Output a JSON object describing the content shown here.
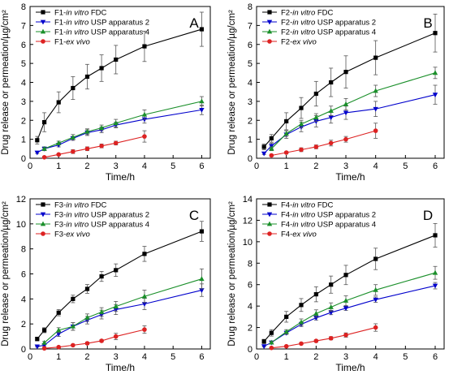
{
  "chart_data": [
    {
      "type": "line",
      "panel_label": "A",
      "xlabel": "Time/h",
      "ylabel": "Drug release or permeation/µg/cm²",
      "ylabel_sup": "2",
      "xlim": [
        0,
        6.3
      ],
      "ylim": [
        0,
        8
      ],
      "xticks": [
        0,
        1,
        2,
        3,
        4,
        5,
        6
      ],
      "yticks": [
        0,
        1,
        2,
        3,
        4,
        5,
        6,
        7,
        8
      ],
      "series": [
        {
          "name_prefix": "F1-",
          "name_italic": "in vitro",
          "name_suffix": " FDC",
          "color": "#000000",
          "marker": "square",
          "x": [
            0.25,
            0.5,
            1,
            1.5,
            2,
            2.5,
            3,
            4,
            6
          ],
          "y": [
            0.95,
            1.9,
            2.95,
            3.7,
            4.3,
            4.75,
            5.2,
            5.9,
            6.8
          ],
          "err": [
            0.2,
            0.5,
            0.55,
            0.6,
            0.65,
            0.7,
            0.75,
            0.8,
            0.9
          ]
        },
        {
          "name_prefix": "F1-",
          "name_italic": "in vitro",
          "name_suffix": " USP apparatus 2",
          "color": "#0000cc",
          "marker": "tri-down",
          "x": [
            0.25,
            0.5,
            1,
            1.5,
            2,
            2.5,
            3,
            4,
            6
          ],
          "y": [
            0.3,
            0.5,
            0.7,
            1.05,
            1.35,
            1.5,
            1.75,
            2.05,
            2.55
          ],
          "err": [
            0.05,
            0.1,
            0.1,
            0.1,
            0.15,
            0.15,
            0.15,
            0.2,
            0.25
          ]
        },
        {
          "name_prefix": "F1-",
          "name_italic": "in vitro",
          "name_suffix": " USP apparatus 4",
          "color": "#1a8f2a",
          "marker": "tri-up",
          "x": [
            0.5,
            1,
            1.5,
            2,
            2.5,
            3,
            4,
            6
          ],
          "y": [
            0.5,
            0.8,
            1.1,
            1.4,
            1.6,
            1.85,
            2.3,
            3.0
          ],
          "err": [
            0.05,
            0.1,
            0.15,
            0.15,
            0.15,
            0.2,
            0.25,
            0.25
          ]
        },
        {
          "name_prefix": "F1-",
          "name_italic": "ex vivo",
          "name_suffix": "",
          "color": "#dd2222",
          "marker": "circle",
          "x": [
            0.5,
            1,
            1.5,
            2,
            2.5,
            3,
            4
          ],
          "y": [
            0.05,
            0.2,
            0.35,
            0.5,
            0.65,
            0.8,
            1.15
          ],
          "err": [
            0.05,
            0.05,
            0.1,
            0.1,
            0.1,
            0.1,
            0.3
          ]
        }
      ]
    },
    {
      "type": "line",
      "panel_label": "B",
      "xlabel": "Time/h",
      "ylabel": "Drug release or permeation/µg/cm²",
      "ylabel_sup": "2",
      "xlim": [
        0,
        6.3
      ],
      "ylim": [
        0,
        8
      ],
      "xticks": [
        0,
        1,
        2,
        3,
        4,
        5,
        6
      ],
      "yticks": [
        0,
        1,
        2,
        3,
        4,
        5,
        6,
        7,
        8
      ],
      "series": [
        {
          "name_prefix": "F2-",
          "name_italic": "in vitro",
          "name_suffix": " FDC",
          "color": "#000000",
          "marker": "square",
          "x": [
            0.25,
            0.5,
            1,
            1.5,
            2,
            2.5,
            3,
            4,
            6
          ],
          "y": [
            0.6,
            1.05,
            1.95,
            2.65,
            3.4,
            4.0,
            4.55,
            5.3,
            6.6
          ],
          "err": [
            0.15,
            0.2,
            0.45,
            0.55,
            0.65,
            0.75,
            0.85,
            0.9,
            1.0
          ]
        },
        {
          "name_prefix": "F2-",
          "name_italic": "in vitro",
          "name_suffix": " USP apparatus 2",
          "color": "#0000cc",
          "marker": "tri-down",
          "x": [
            0.25,
            0.5,
            1,
            1.5,
            2,
            2.5,
            3,
            4,
            6
          ],
          "y": [
            0.25,
            0.65,
            1.25,
            1.65,
            1.95,
            2.15,
            2.4,
            2.6,
            3.35
          ],
          "err": [
            0.05,
            0.15,
            0.2,
            0.25,
            0.3,
            0.3,
            0.35,
            0.4,
            0.5
          ]
        },
        {
          "name_prefix": "F2-",
          "name_italic": "in vitro",
          "name_suffix": " USP apparatus 4",
          "color": "#1a8f2a",
          "marker": "tri-up",
          "x": [
            0.5,
            1,
            1.5,
            2,
            2.5,
            3,
            4,
            6
          ],
          "y": [
            0.5,
            1.3,
            1.8,
            2.15,
            2.5,
            2.85,
            3.55,
            4.5
          ],
          "err": [
            0.1,
            0.15,
            0.2,
            0.2,
            0.25,
            0.3,
            0.3,
            0.3
          ]
        },
        {
          "name_prefix": "F2-",
          "name_italic": "ex vivo",
          "name_suffix": "",
          "color": "#dd2222",
          "marker": "circle",
          "x": [
            0.5,
            1,
            1.5,
            2,
            2.5,
            3,
            4
          ],
          "y": [
            0.15,
            0.3,
            0.45,
            0.6,
            0.8,
            1.0,
            1.45
          ],
          "err": [
            0.05,
            0.05,
            0.1,
            0.1,
            0.15,
            0.15,
            0.4
          ]
        }
      ]
    },
    {
      "type": "line",
      "panel_label": "C",
      "xlabel": "Time/h",
      "ylabel": "Drug release or permeation/µg/cm²",
      "ylabel_sup": "2",
      "xlim": [
        0,
        6.3
      ],
      "ylim": [
        0,
        12
      ],
      "xticks": [
        0,
        1,
        2,
        3,
        4,
        5,
        6
      ],
      "yticks": [
        0,
        2,
        4,
        6,
        8,
        10,
        12
      ],
      "series": [
        {
          "name_prefix": "F3-",
          "name_italic": "in vitro",
          "name_suffix": " FDC",
          "color": "#000000",
          "marker": "square",
          "x": [
            0.25,
            0.5,
            1,
            1.5,
            2,
            2.5,
            3,
            4,
            6
          ],
          "y": [
            0.8,
            1.5,
            2.9,
            4.0,
            4.8,
            5.8,
            6.3,
            7.6,
            9.4
          ],
          "err": [
            0.15,
            0.2,
            0.25,
            0.3,
            0.35,
            0.4,
            0.5,
            0.6,
            0.8
          ]
        },
        {
          "name_prefix": "F3-",
          "name_italic": "in vitro",
          "name_suffix": " USP apparatus 2",
          "color": "#0000cc",
          "marker": "tri-down",
          "x": [
            0.25,
            0.5,
            1,
            1.5,
            2,
            2.5,
            3,
            4,
            6
          ],
          "y": [
            0.2,
            0.3,
            1.2,
            1.8,
            2.3,
            2.75,
            3.15,
            3.6,
            4.7
          ],
          "err": [
            0.05,
            0.1,
            0.2,
            0.3,
            0.3,
            0.35,
            0.4,
            0.45,
            0.5
          ]
        },
        {
          "name_prefix": "F3-",
          "name_italic": "in vitro",
          "name_suffix": " USP apparatus 4",
          "color": "#1a8f2a",
          "marker": "tri-up",
          "x": [
            0.5,
            1,
            1.5,
            2,
            2.5,
            3,
            4,
            6
          ],
          "y": [
            0.5,
            1.5,
            1.8,
            2.5,
            2.95,
            3.4,
            4.2,
            5.6
          ],
          "err": [
            0.1,
            0.2,
            0.3,
            0.3,
            0.35,
            0.4,
            0.5,
            0.8
          ]
        },
        {
          "name_prefix": "F3-",
          "name_italic": "ex vivo",
          "name_suffix": "",
          "color": "#dd2222",
          "marker": "circle",
          "x": [
            0.5,
            1,
            1.5,
            2,
            2.5,
            3,
            4
          ],
          "y": [
            0.05,
            0.15,
            0.3,
            0.45,
            0.65,
            1.0,
            1.55
          ],
          "err": [
            0.02,
            0.05,
            0.05,
            0.1,
            0.1,
            0.25,
            0.3
          ]
        }
      ]
    },
    {
      "type": "line",
      "panel_label": "D",
      "xlabel": "Time/h",
      "ylabel": "Drug release or permeation/µg/cm²",
      "ylabel_sup": "2",
      "xlim": [
        0,
        6.3
      ],
      "ylim": [
        0,
        14
      ],
      "xticks": [
        0,
        1,
        2,
        3,
        4,
        5,
        6
      ],
      "yticks": [
        0,
        2,
        4,
        6,
        8,
        10,
        12,
        14
      ],
      "series": [
        {
          "name_prefix": "F4-",
          "name_italic": "in vitro",
          "name_suffix": " FDC",
          "color": "#000000",
          "marker": "square",
          "x": [
            0.25,
            0.5,
            1,
            1.5,
            2,
            2.5,
            3,
            4,
            6
          ],
          "y": [
            0.7,
            1.5,
            3.0,
            4.1,
            5.1,
            6.0,
            6.9,
            8.4,
            10.6
          ],
          "err": [
            0.2,
            0.3,
            0.5,
            0.6,
            0.7,
            0.8,
            0.9,
            1.0,
            1.1
          ]
        },
        {
          "name_prefix": "F4-",
          "name_italic": "in vitro",
          "name_suffix": " USP apparatus 2",
          "color": "#0000cc",
          "marker": "tri-down",
          "x": [
            0.25,
            0.5,
            1,
            1.5,
            2,
            2.5,
            3,
            4,
            6
          ],
          "y": [
            0.25,
            0.6,
            1.5,
            2.3,
            2.9,
            3.4,
            3.8,
            4.6,
            5.9
          ],
          "err": [
            0.05,
            0.1,
            0.15,
            0.2,
            0.2,
            0.2,
            0.2,
            0.25,
            0.3
          ]
        },
        {
          "name_prefix": "F4-",
          "name_italic": "in vitro",
          "name_suffix": " USP apparatus 4",
          "color": "#1a8f2a",
          "marker": "tri-up",
          "x": [
            0.5,
            1,
            1.5,
            2,
            2.5,
            3,
            4,
            6
          ],
          "y": [
            0.6,
            1.6,
            2.5,
            3.3,
            3.9,
            4.5,
            5.5,
            7.1
          ],
          "err": [
            0.1,
            0.2,
            0.3,
            0.35,
            0.4,
            0.45,
            0.5,
            0.6
          ]
        },
        {
          "name_prefix": "F4-",
          "name_italic": "ex vivo",
          "name_suffix": "",
          "color": "#dd2222",
          "marker": "circle",
          "x": [
            0.5,
            1,
            1.5,
            2,
            2.5,
            3,
            4
          ],
          "y": [
            0.1,
            0.25,
            0.5,
            0.75,
            1.0,
            1.3,
            2.0
          ],
          "err": [
            0.05,
            0.05,
            0.1,
            0.1,
            0.15,
            0.2,
            0.35
          ]
        }
      ]
    }
  ]
}
